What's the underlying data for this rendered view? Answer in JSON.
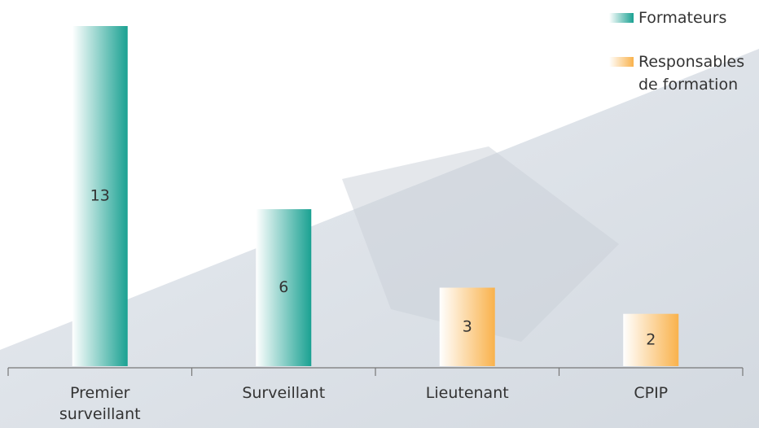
{
  "chart_data": {
    "type": "bar",
    "categories": [
      "Premier surveillant",
      "Surveillant",
      "Lieutenant",
      "CPIP"
    ],
    "series": [
      {
        "name": "Formateurs",
        "color": "#1aa192",
        "values": [
          13,
          6,
          null,
          null
        ]
      },
      {
        "name": "Responsables de formation",
        "color": "#f9b24c",
        "values": [
          null,
          null,
          3,
          2
        ]
      }
    ],
    "ylim": [
      0,
      13
    ],
    "legend": "top-right"
  }
}
